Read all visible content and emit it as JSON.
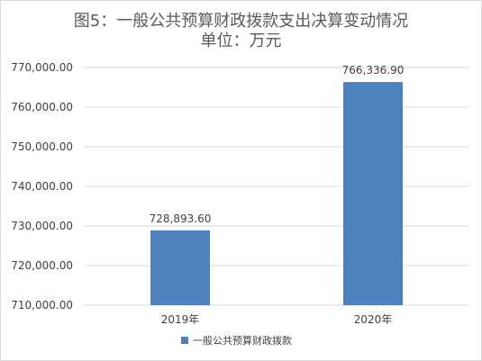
{
  "chart_data": {
    "type": "bar",
    "title": "图5：一般公共预算财政拨款支出决算变动情况",
    "subtitle": "单位：万元",
    "categories": [
      "2019年",
      "2020年"
    ],
    "series": [
      {
        "name": "一般公共预算财政拨款",
        "values": [
          728893.6,
          766336.9
        ],
        "value_labels": [
          "728,893.60",
          "766,336.90"
        ]
      }
    ],
    "yticks": [
      710000,
      720000,
      730000,
      740000,
      750000,
      760000,
      770000
    ],
    "ytick_labels": [
      "710,000.00",
      "720,000.00",
      "730,000.00",
      "740,000.00",
      "750,000.00",
      "760,000.00",
      "770,000.00"
    ],
    "ylim": [
      710000,
      770000
    ],
    "xlabel": "",
    "ylabel": "",
    "grid": true,
    "legend_position": "bottom",
    "colors": {
      "bar": "#4f81bd",
      "grid": "#d9d9d9",
      "text": "#404040",
      "title": "#595959"
    }
  }
}
